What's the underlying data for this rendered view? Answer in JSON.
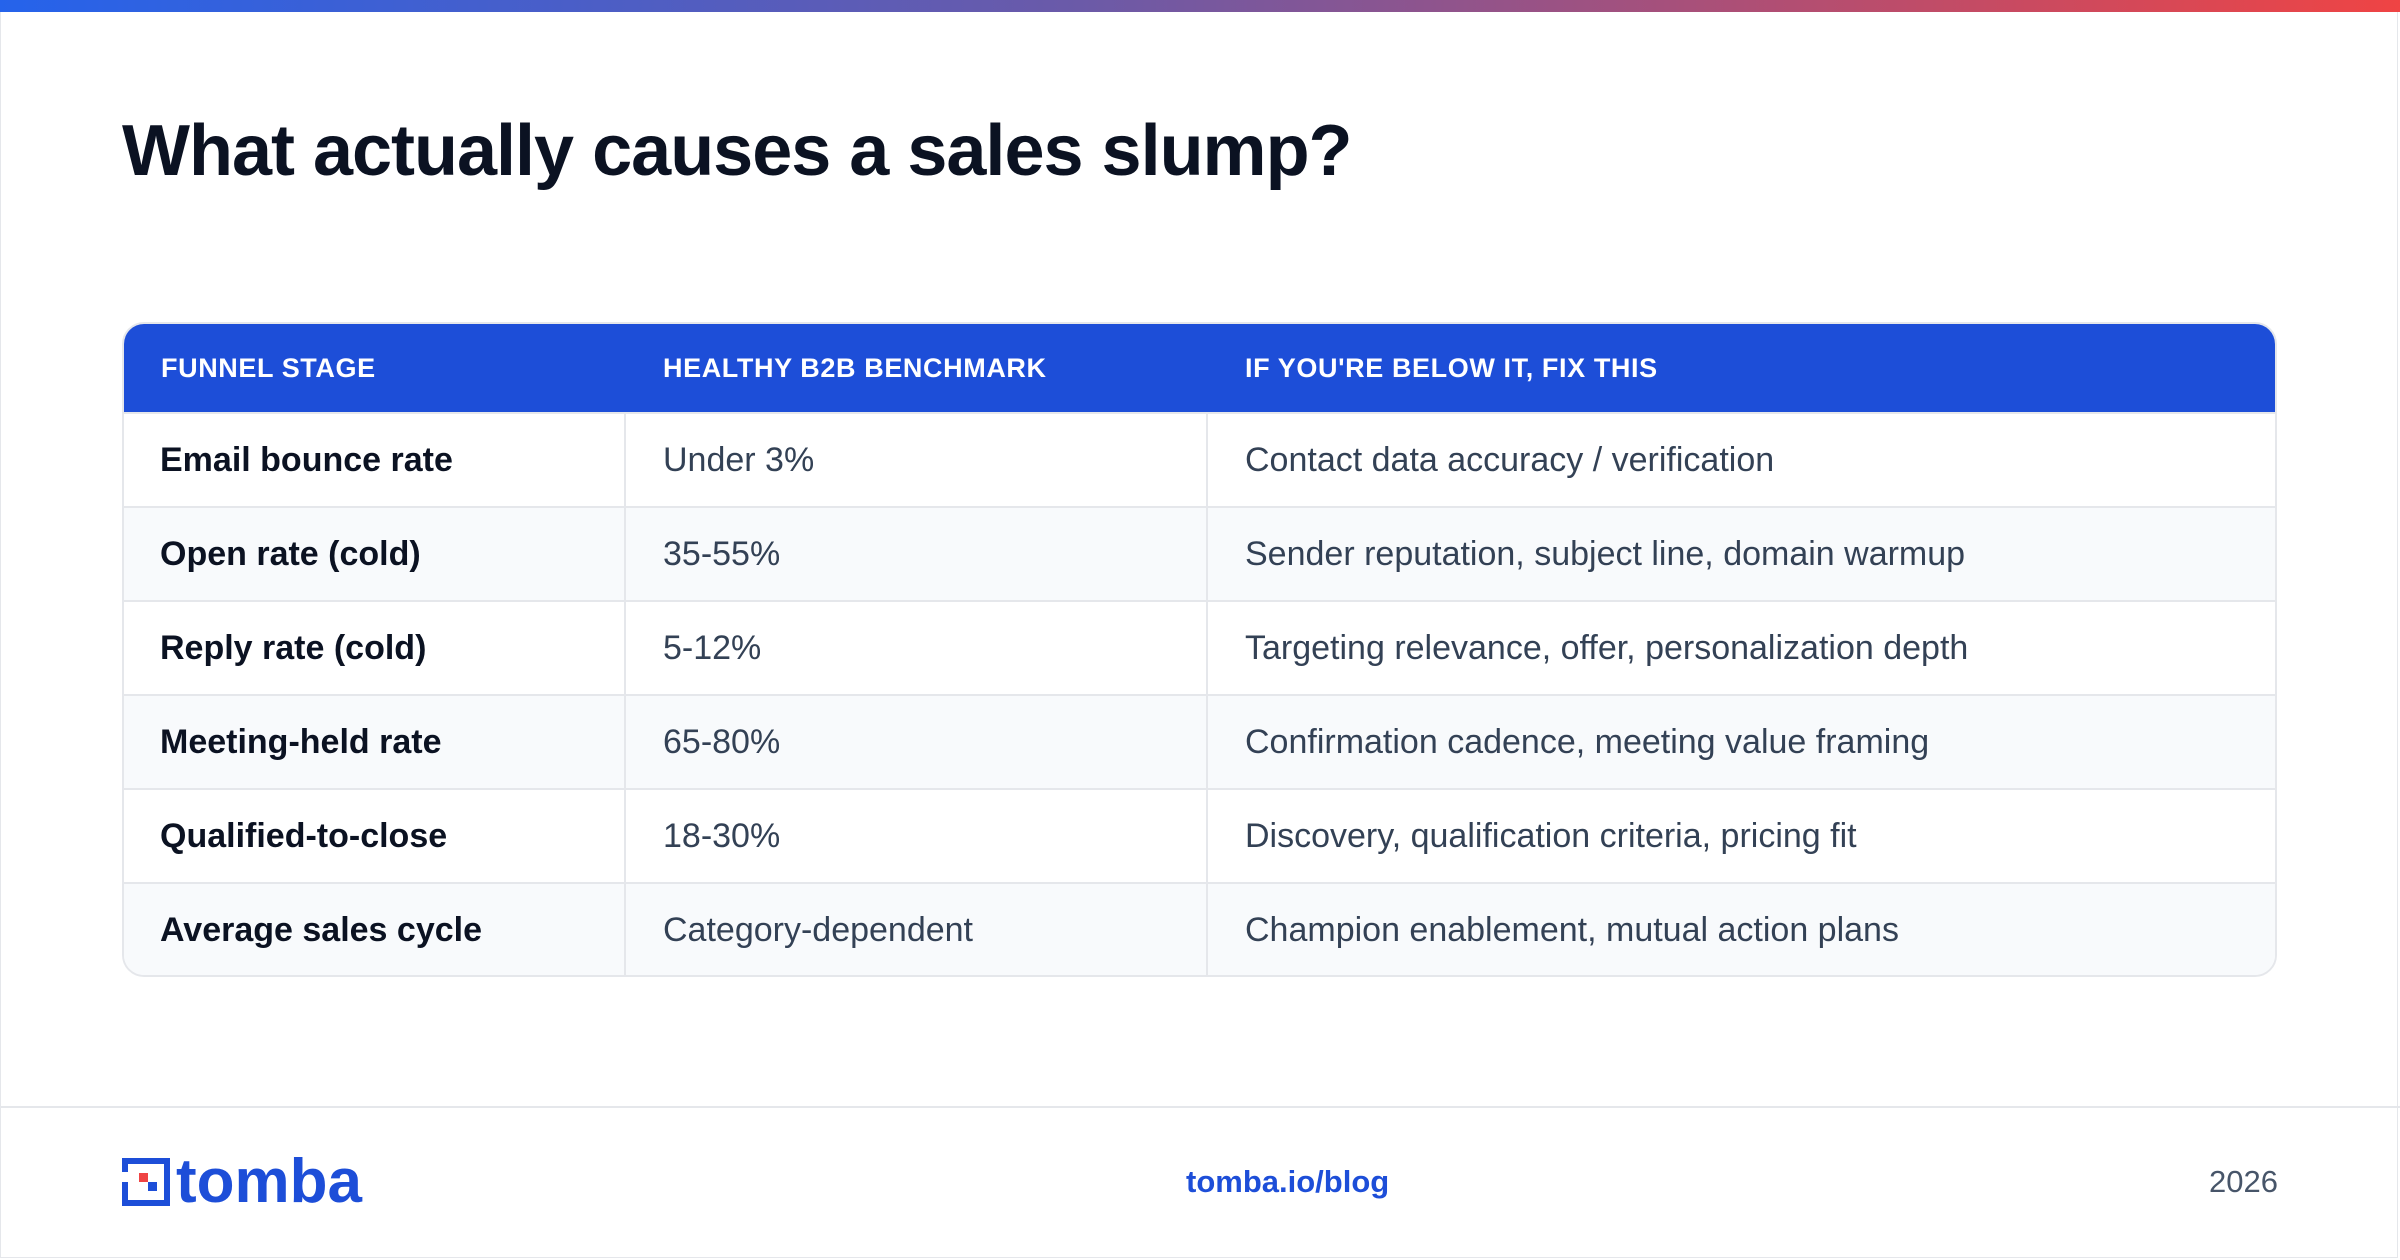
{
  "page": {
    "title": "What actually causes a sales slump?"
  },
  "table": {
    "headers": [
      "FUNNEL STAGE",
      "HEALTHY B2B BENCHMARK",
      "IF YOU'RE BELOW IT, FIX THIS"
    ],
    "rows": [
      {
        "stage": "Email bounce rate",
        "benchmark": "Under 3%",
        "fix": "Contact data accuracy / verification"
      },
      {
        "stage": "Open rate (cold)",
        "benchmark": "35-55%",
        "fix": "Sender reputation, subject line, domain warmup"
      },
      {
        "stage": "Reply rate (cold)",
        "benchmark": "5-12%",
        "fix": "Targeting relevance, offer, personalization depth"
      },
      {
        "stage": "Meeting-held rate",
        "benchmark": "65-80%",
        "fix": "Confirmation cadence, meeting value framing"
      },
      {
        "stage": "Qualified-to-close",
        "benchmark": "18-30%",
        "fix": "Discovery, qualification criteria, pricing fit"
      },
      {
        "stage": "Average sales cycle",
        "benchmark": "Category-dependent",
        "fix": "Champion enablement, mutual action plans"
      }
    ]
  },
  "footer": {
    "brand": "tomba",
    "brand_icon": "tomba-logo-icon",
    "link": "tomba.io/blog",
    "year": "2026"
  },
  "colors": {
    "accent": "#1d4ed8",
    "title": "#0b1222",
    "gradient_start": "#2563eb",
    "gradient_end": "#ef4444"
  }
}
